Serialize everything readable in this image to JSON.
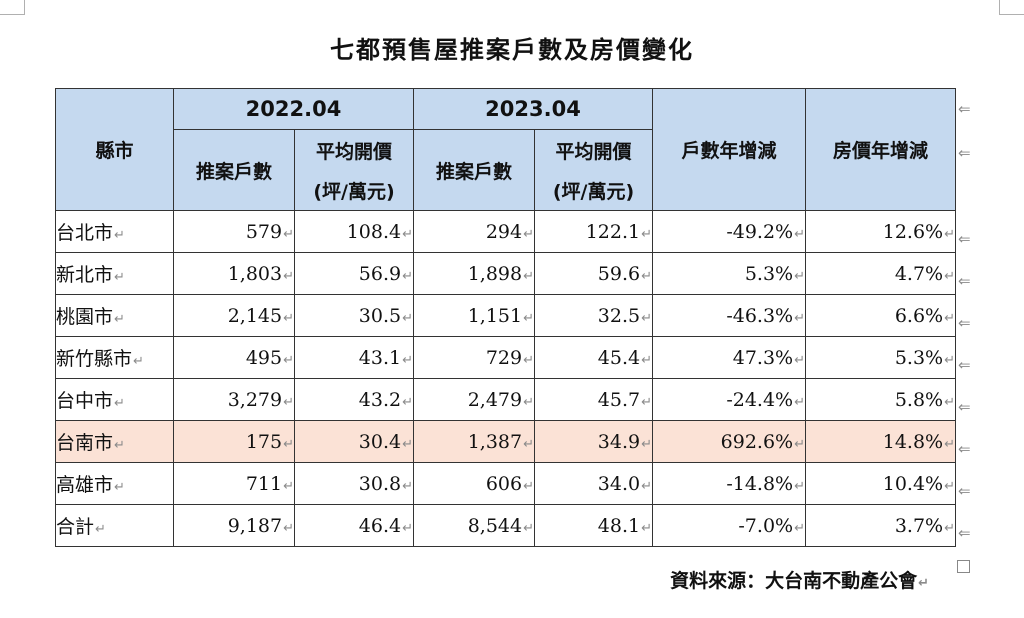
{
  "title": "七都預售屋推案戶數及房價變化",
  "table": {
    "header": {
      "county": "縣市",
      "year1": "2022.04",
      "year2": "2023.04",
      "cases": "推案戶數",
      "avg_price": "平均開價",
      "unit": "(坪/萬元)",
      "yoy_units": "戶數年增減",
      "yoy_price": "房價年增減"
    },
    "rows": [
      {
        "county": "台北市",
        "cases_2022": "579",
        "price_2022": "108.4",
        "cases_2023": "294",
        "price_2023": "122.1",
        "yoy_units": "-49.2%",
        "yoy_price": "12.6%"
      },
      {
        "county": "新北市",
        "cases_2022": "1,803",
        "price_2022": "56.9",
        "cases_2023": "1,898",
        "price_2023": "59.6",
        "yoy_units": "5.3%",
        "yoy_price": "4.7%"
      },
      {
        "county": "桃園市",
        "cases_2022": "2,145",
        "price_2022": "30.5",
        "cases_2023": "1,151",
        "price_2023": "32.5",
        "yoy_units": "-46.3%",
        "yoy_price": "6.6%"
      },
      {
        "county": "新竹縣市",
        "cases_2022": "495",
        "price_2022": "43.1",
        "cases_2023": "729",
        "price_2023": "45.4",
        "yoy_units": "47.3%",
        "yoy_price": "5.3%"
      },
      {
        "county": "台中市",
        "cases_2022": "3,279",
        "price_2022": "43.2",
        "cases_2023": "2,479",
        "price_2023": "45.7",
        "yoy_units": "-24.4%",
        "yoy_price": "5.8%"
      },
      {
        "county": "台南市",
        "cases_2022": "175",
        "price_2022": "30.4",
        "cases_2023": "1,387",
        "price_2023": "34.9",
        "yoy_units": "692.6%",
        "yoy_price": "14.8%"
      },
      {
        "county": "高雄市",
        "cases_2022": "711",
        "price_2022": "30.8",
        "cases_2023": "606",
        "price_2023": "34.0",
        "yoy_units": "-14.8%",
        "yoy_price": "10.4%"
      },
      {
        "county": "合計",
        "cases_2022": "9,187",
        "price_2022": "46.4",
        "cases_2023": "8,544",
        "price_2023": "48.1",
        "yoy_units": "-7.0%",
        "yoy_price": "3.7%"
      }
    ]
  },
  "source": "資料來源：大台南不動產公會",
  "colors": {
    "header_bg": "#c5d9ef",
    "highlight_row": "#fbe2d6"
  },
  "icons": {
    "paragraph_mark": "return-arrow-icon"
  }
}
